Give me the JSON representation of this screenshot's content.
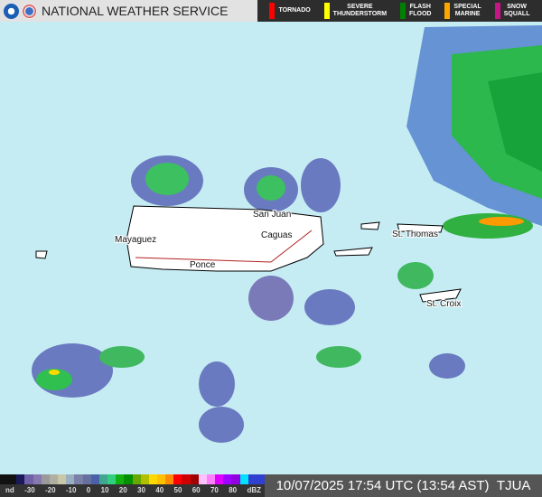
{
  "header": {
    "title": "NATIONAL WEATHER SERVICE",
    "warnings": [
      {
        "label": "TORNADO",
        "color": "#ff0000"
      },
      {
        "label": "SEVERE\nTHUNDERSTORM",
        "color": "#ffff00"
      },
      {
        "label": "FLASH\nFLOOD",
        "color": "#008000"
      },
      {
        "label": "SPECIAL\nMARINE",
        "color": "#ffa500"
      },
      {
        "label": "SNOW\nSQUALL",
        "color": "#c71585"
      }
    ]
  },
  "map": {
    "cities": [
      "San Juan",
      "Mayaguez",
      "Caguas",
      "Ponce",
      "St. Thomas",
      "St. Croix"
    ]
  },
  "legend": {
    "ticks": [
      "nd",
      "-30",
      "-20",
      "-10",
      "0",
      "10",
      "20",
      "30",
      "40",
      "50",
      "60",
      "70",
      "80",
      "dBZ"
    ],
    "colors": [
      "#111",
      "#111",
      "#1a1a5a",
      "#7060a8",
      "#8878b0",
      "#9a9a9a",
      "#b0b0a0",
      "#c8c8a8",
      "#9ab0c0",
      "#7a80a8",
      "#6670a0",
      "#4a60a8",
      "#40a890",
      "#30d080",
      "#10b010",
      "#009000",
      "#68a800",
      "#b0c000",
      "#ffd800",
      "#ffc000",
      "#ff8c00",
      "#ff0000",
      "#d00000",
      "#a00000",
      "#ffc0ff",
      "#ff80ff",
      "#e000ff",
      "#a000ff",
      "#9000e0",
      "#00e0ff",
      "#3040d0",
      "#3040d0"
    ],
    "timestamp": "10/07/2025 17:54 UTC (13:54 AST)",
    "station": "TJUA"
  }
}
